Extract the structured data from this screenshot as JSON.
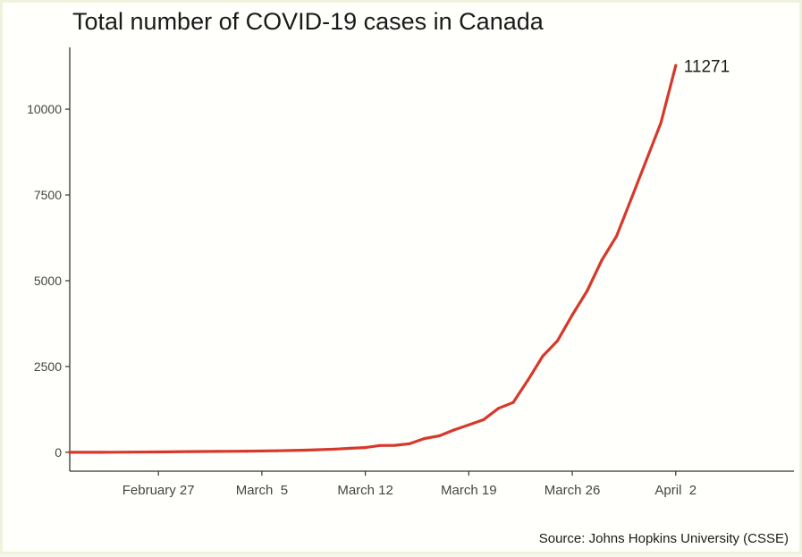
{
  "chart_data": {
    "type": "line",
    "title": "Total number of COVID-19 cases in Canada",
    "caption": "Source: Johns Hopkins University (CSSE)",
    "xlabel": "",
    "ylabel": "",
    "x_range": [
      "2020-02-21",
      "2020-04-10"
    ],
    "ylim": [
      -550,
      11800
    ],
    "y_ticks": [
      0,
      2500,
      5000,
      7500,
      10000
    ],
    "x_ticks": [
      {
        "date": "2020-02-27",
        "label": "February 27"
      },
      {
        "date": "2020-03-05",
        "label": "March  5"
      },
      {
        "date": "2020-03-12",
        "label": "March 12"
      },
      {
        "date": "2020-03-19",
        "label": "March 19"
      },
      {
        "date": "2020-03-26",
        "label": "March 26"
      },
      {
        "date": "2020-04-02",
        "label": "April  2"
      }
    ],
    "grid": false,
    "series": [
      {
        "color": "#d6392b",
        "end_label": "11271",
        "points": [
          [
            "2020-02-21",
            0
          ],
          [
            "2020-02-23",
            0
          ],
          [
            "2020-02-25",
            5
          ],
          [
            "2020-02-27",
            11
          ],
          [
            "2020-02-29",
            20
          ],
          [
            "2020-03-02",
            27
          ],
          [
            "2020-03-04",
            33
          ],
          [
            "2020-03-06",
            45
          ],
          [
            "2020-03-08",
            62
          ],
          [
            "2020-03-10",
            93
          ],
          [
            "2020-03-11",
            117
          ],
          [
            "2020-03-12",
            138
          ],
          [
            "2020-03-13",
            198
          ],
          [
            "2020-03-14",
            202
          ],
          [
            "2020-03-15",
            250
          ],
          [
            "2020-03-16",
            400
          ],
          [
            "2020-03-17",
            480
          ],
          [
            "2020-03-18",
            650
          ],
          [
            "2020-03-19",
            800
          ],
          [
            "2020-03-20",
            950
          ],
          [
            "2020-03-21",
            1280
          ],
          [
            "2020-03-22",
            1450
          ],
          [
            "2020-03-23",
            2100
          ],
          [
            "2020-03-24",
            2800
          ],
          [
            "2020-03-25",
            3250
          ],
          [
            "2020-03-26",
            4000
          ],
          [
            "2020-03-27",
            4700
          ],
          [
            "2020-03-28",
            5600
          ],
          [
            "2020-03-29",
            6300
          ],
          [
            "2020-03-30",
            7400
          ],
          [
            "2020-03-31",
            8500
          ],
          [
            "2020-04-01",
            9600
          ],
          [
            "2020-04-02",
            11271
          ]
        ]
      }
    ]
  }
}
